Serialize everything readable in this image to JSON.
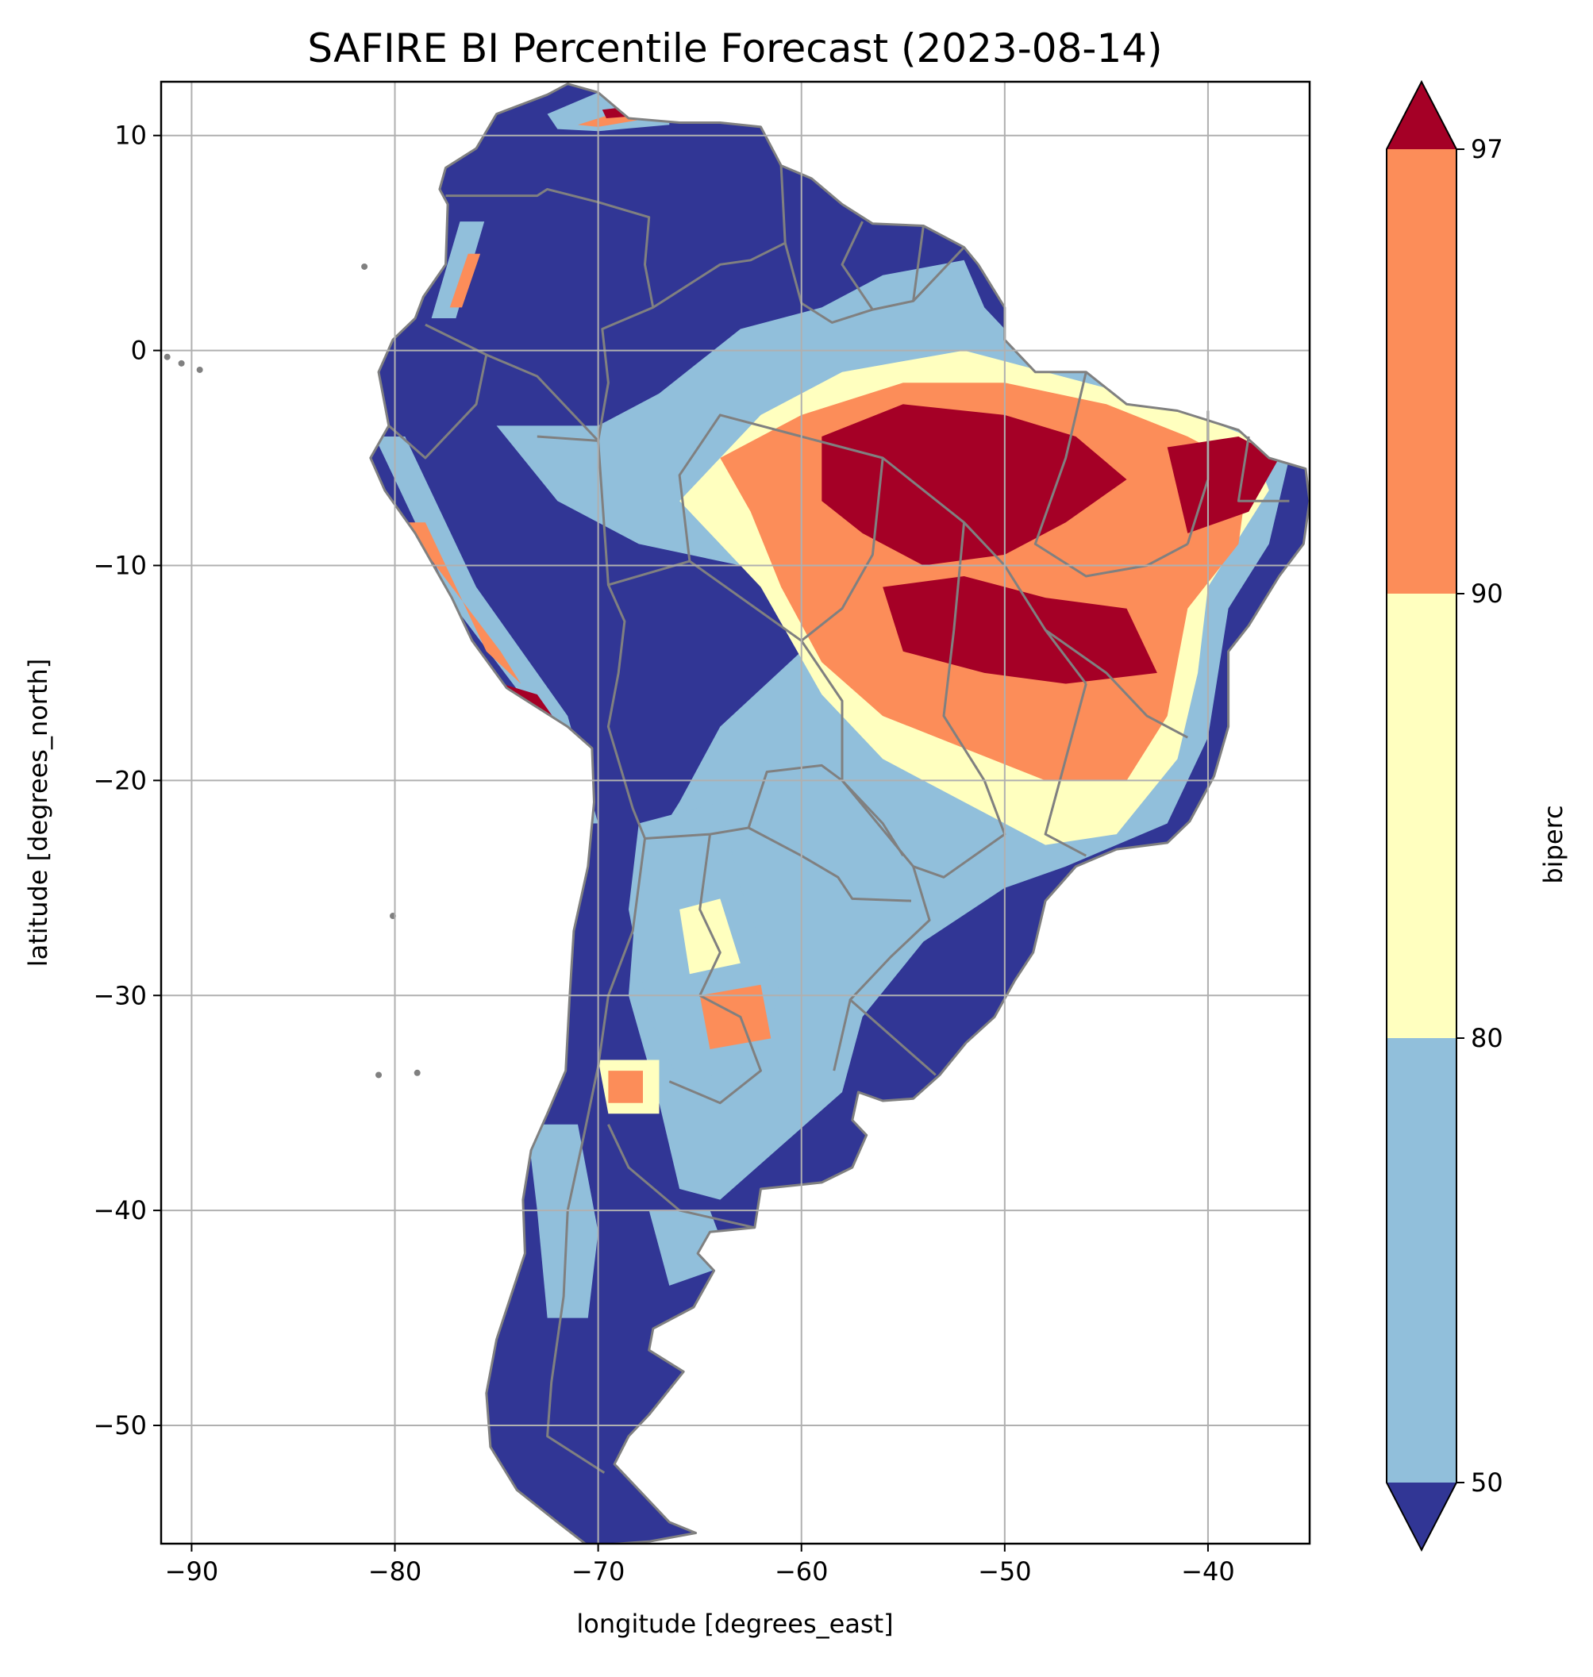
{
  "title": "SAFIRE BI Percentile Forecast (2023-08-14)",
  "chart_data": {
    "type": "heatmap",
    "title": "SAFIRE BI Percentile Forecast (2023-08-14)",
    "xlabel": "longitude [degrees_east]",
    "ylabel": "latitude [degrees_north]",
    "xlim": [
      -91.5,
      -35
    ],
    "ylim": [
      -55.5,
      12.5
    ],
    "x_ticks": [
      -90,
      -80,
      -70,
      -60,
      -50,
      -40
    ],
    "x_tick_labels": [
      "−90",
      "−80",
      "−70",
      "−60",
      "−50",
      "−40"
    ],
    "y_ticks": [
      10,
      0,
      -10,
      -20,
      -30,
      -40,
      -50
    ],
    "y_tick_labels": [
      "10",
      "0",
      "−10",
      "−20",
      "−30",
      "−40",
      "−50"
    ],
    "grid": true,
    "colorbar": {
      "label": "biperc",
      "levels": [
        50,
        80,
        90,
        97
      ],
      "level_labels": [
        "50",
        "80",
        "90",
        "97"
      ],
      "extend": "both",
      "colors": {
        "below_50": "#313695",
        "50_80": "#91bfdb",
        "80_90": "#ffffbf",
        "90_97": "#fc8d59",
        "above_97": "#a50026"
      }
    },
    "land_default_class": "below_50",
    "regions": [
      {
        "class": "50_80",
        "polygon": [
          [
            -75,
            -3.5
          ],
          [
            -70,
            -3.5
          ],
          [
            -67,
            -2
          ],
          [
            -63,
            1
          ],
          [
            -59,
            2
          ],
          [
            -56,
            3.5
          ],
          [
            -52,
            4.2
          ],
          [
            -51,
            2
          ],
          [
            -49,
            0
          ],
          [
            -45,
            -1
          ],
          [
            -40,
            -2.5
          ],
          [
            -36,
            -5
          ],
          [
            -37,
            -9
          ],
          [
            -39,
            -12
          ],
          [
            -40,
            -18
          ],
          [
            -42,
            -22
          ],
          [
            -47,
            -24
          ],
          [
            -50,
            -25
          ],
          [
            -54,
            -27.5
          ],
          [
            -57,
            -31
          ],
          [
            -58,
            -34.5
          ],
          [
            -61,
            -37
          ],
          [
            -64,
            -39.5
          ],
          [
            -66,
            -39
          ],
          [
            -67,
            -35
          ],
          [
            -68.5,
            -30
          ],
          [
            -68,
            -24
          ],
          [
            -66,
            -21
          ],
          [
            -64,
            -17.5
          ],
          [
            -60,
            -14
          ],
          [
            -57,
            -12
          ],
          [
            -63,
            -10
          ],
          [
            -68,
            -9
          ],
          [
            -72,
            -7
          ]
        ]
      },
      {
        "class": "80_90",
        "polygon": [
          [
            -66,
            -7
          ],
          [
            -62,
            -3
          ],
          [
            -58,
            -1
          ],
          [
            -52,
            0
          ],
          [
            -46,
            -1.5
          ],
          [
            -42,
            -2.5
          ],
          [
            -38,
            -4
          ],
          [
            -37,
            -6.5
          ],
          [
            -40,
            -11
          ],
          [
            -40.5,
            -15
          ],
          [
            -41.5,
            -19
          ],
          [
            -44.5,
            -22.5
          ],
          [
            -48,
            -23
          ],
          [
            -52,
            -21
          ],
          [
            -56,
            -19
          ],
          [
            -59,
            -16
          ],
          [
            -62,
            -11
          ],
          [
            -64,
            -9
          ]
        ]
      },
      {
        "class": "90_97",
        "polygon": [
          [
            -64,
            -5
          ],
          [
            -60,
            -3
          ],
          [
            -55,
            -1.5
          ],
          [
            -50,
            -1.5
          ],
          [
            -45,
            -2.5
          ],
          [
            -41,
            -4
          ],
          [
            -38,
            -5.5
          ],
          [
            -38.5,
            -9
          ],
          [
            -41,
            -12
          ],
          [
            -42,
            -17
          ],
          [
            -44,
            -20
          ],
          [
            -48,
            -20
          ],
          [
            -52,
            -18.5
          ],
          [
            -56,
            -17
          ],
          [
            -59,
            -14.5
          ],
          [
            -61,
            -11
          ],
          [
            -62.5,
            -7.5
          ]
        ]
      },
      {
        "class": "above_97",
        "polygon": [
          [
            -59,
            -4
          ],
          [
            -55,
            -2.5
          ],
          [
            -50,
            -3
          ],
          [
            -46.5,
            -4
          ],
          [
            -44,
            -6
          ],
          [
            -47,
            -8
          ],
          [
            -50,
            -9.5
          ],
          [
            -54,
            -10
          ],
          [
            -57,
            -8.5
          ],
          [
            -59,
            -7
          ]
        ]
      },
      {
        "class": "above_97",
        "polygon": [
          [
            -56,
            -11
          ],
          [
            -52,
            -10.5
          ],
          [
            -48,
            -11.5
          ],
          [
            -44,
            -12
          ],
          [
            -42.5,
            -15
          ],
          [
            -47,
            -15.5
          ],
          [
            -51,
            -15
          ],
          [
            -55,
            -14
          ]
        ]
      },
      {
        "class": "above_97",
        "polygon": [
          [
            -42,
            -4.5
          ],
          [
            -38.5,
            -4
          ],
          [
            -36.5,
            -5
          ],
          [
            -38,
            -7.5
          ],
          [
            -41,
            -8.5
          ]
        ]
      },
      {
        "class": "50_80",
        "polygon": [
          [
            -68,
            -22
          ],
          [
            -64,
            -21
          ],
          [
            -63,
            -25
          ],
          [
            -61,
            -30
          ],
          [
            -63,
            -33.5
          ],
          [
            -66,
            -34
          ],
          [
            -67.5,
            -31
          ],
          [
            -68.5,
            -26
          ]
        ]
      },
      {
        "class": "80_90",
        "polygon": [
          [
            -66,
            -26
          ],
          [
            -64,
            -25.5
          ],
          [
            -63,
            -28.5
          ],
          [
            -65.5,
            -29
          ]
        ]
      },
      {
        "class": "90_97",
        "polygon": [
          [
            -65,
            -30
          ],
          [
            -62,
            -29.5
          ],
          [
            -61.5,
            -32
          ],
          [
            -64.5,
            -32.5
          ]
        ]
      },
      {
        "class": "80_90",
        "polygon": [
          [
            -70,
            -33
          ],
          [
            -67,
            -33
          ],
          [
            -67,
            -35.5
          ],
          [
            -69.5,
            -35.5
          ]
        ]
      },
      {
        "class": "90_97",
        "polygon": [
          [
            -69.5,
            -33.5
          ],
          [
            -67.8,
            -33.5
          ],
          [
            -67.8,
            -35
          ],
          [
            -69.5,
            -35
          ]
        ]
      },
      {
        "class": "50_80",
        "polygon": [
          [
            -81,
            -4
          ],
          [
            -79.5,
            -4
          ],
          [
            -76,
            -11
          ],
          [
            -71.5,
            -17
          ],
          [
            -70,
            -22
          ],
          [
            -71.2,
            -22
          ],
          [
            -73,
            -17
          ],
          [
            -77,
            -12
          ]
        ]
      },
      {
        "class": "90_97",
        "polygon": [
          [
            -79.5,
            -8
          ],
          [
            -78.5,
            -8
          ],
          [
            -75.5,
            -14
          ],
          [
            -73.8,
            -15.5
          ],
          [
            -74.8,
            -14
          ],
          [
            -78,
            -10
          ]
        ]
      },
      {
        "class": "above_97",
        "polygon": [
          [
            -76.5,
            -15
          ],
          [
            -73,
            -16
          ],
          [
            -71.8,
            -17.6
          ],
          [
            -73.5,
            -17.2
          ],
          [
            -76,
            -15.8
          ]
        ]
      },
      {
        "class": "50_80",
        "polygon": [
          [
            -73.5,
            -36
          ],
          [
            -71,
            -36
          ],
          [
            -70,
            -41
          ],
          [
            -70.5,
            -45
          ],
          [
            -72.5,
            -45
          ],
          [
            -73,
            -40
          ]
        ]
      },
      {
        "class": "50_80",
        "polygon": [
          [
            -67.5,
            -40
          ],
          [
            -64.5,
            -40
          ],
          [
            -63.5,
            -42.5
          ],
          [
            -66.5,
            -43.5
          ]
        ]
      },
      {
        "class": "50_80",
        "polygon": [
          [
            -72.5,
            11
          ],
          [
            -70,
            12
          ],
          [
            -66.5,
            11.5
          ],
          [
            -66.5,
            10.5
          ],
          [
            -70,
            10.2
          ],
          [
            -72,
            10.3
          ]
        ]
      },
      {
        "class": "90_97",
        "polygon": [
          [
            -71,
            10.5
          ],
          [
            -68,
            11.4
          ],
          [
            -67.5,
            10.8
          ],
          [
            -70,
            10.4
          ]
        ]
      },
      {
        "class": "above_97",
        "polygon": [
          [
            -69.8,
            11.2
          ],
          [
            -68,
            11.4
          ],
          [
            -68.2,
            10.9
          ],
          [
            -69.6,
            10.8
          ]
        ]
      },
      {
        "class": "50_80",
        "polygon": [
          [
            -76.8,
            6
          ],
          [
            -75.6,
            6
          ],
          [
            -77,
            1.5
          ],
          [
            -78.2,
            1.5
          ]
        ]
      },
      {
        "class": "90_97",
        "polygon": [
          [
            -76.4,
            4.5
          ],
          [
            -75.8,
            4.5
          ],
          [
            -76.7,
            2
          ],
          [
            -77.3,
            2
          ]
        ]
      }
    ]
  }
}
